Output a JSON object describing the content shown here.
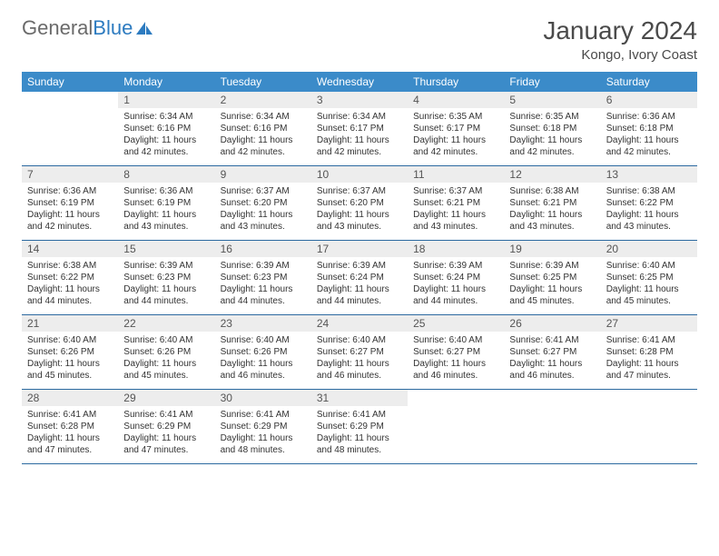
{
  "brand": {
    "part1": "General",
    "part2": "Blue",
    "logo_color": "#2d7bc0"
  },
  "title": "January 2024",
  "location": "Kongo, Ivory Coast",
  "colors": {
    "header_bg": "#3b8bc9",
    "header_text": "#ffffff",
    "daynum_bg": "#ededed",
    "rule": "#2c6aa0",
    "text": "#333333"
  },
  "fonts": {
    "title_size": 28,
    "location_size": 15,
    "dow_size": 12,
    "body_size": 10
  },
  "dow": [
    "Sunday",
    "Monday",
    "Tuesday",
    "Wednesday",
    "Thursday",
    "Friday",
    "Saturday"
  ],
  "weeks": [
    [
      null,
      {
        "n": "1",
        "sr": "6:34 AM",
        "ss": "6:16 PM",
        "dl": "11 hours and 42 minutes."
      },
      {
        "n": "2",
        "sr": "6:34 AM",
        "ss": "6:16 PM",
        "dl": "11 hours and 42 minutes."
      },
      {
        "n": "3",
        "sr": "6:34 AM",
        "ss": "6:17 PM",
        "dl": "11 hours and 42 minutes."
      },
      {
        "n": "4",
        "sr": "6:35 AM",
        "ss": "6:17 PM",
        "dl": "11 hours and 42 minutes."
      },
      {
        "n": "5",
        "sr": "6:35 AM",
        "ss": "6:18 PM",
        "dl": "11 hours and 42 minutes."
      },
      {
        "n": "6",
        "sr": "6:36 AM",
        "ss": "6:18 PM",
        "dl": "11 hours and 42 minutes."
      }
    ],
    [
      {
        "n": "7",
        "sr": "6:36 AM",
        "ss": "6:19 PM",
        "dl": "11 hours and 42 minutes."
      },
      {
        "n": "8",
        "sr": "6:36 AM",
        "ss": "6:19 PM",
        "dl": "11 hours and 43 minutes."
      },
      {
        "n": "9",
        "sr": "6:37 AM",
        "ss": "6:20 PM",
        "dl": "11 hours and 43 minutes."
      },
      {
        "n": "10",
        "sr": "6:37 AM",
        "ss": "6:20 PM",
        "dl": "11 hours and 43 minutes."
      },
      {
        "n": "11",
        "sr": "6:37 AM",
        "ss": "6:21 PM",
        "dl": "11 hours and 43 minutes."
      },
      {
        "n": "12",
        "sr": "6:38 AM",
        "ss": "6:21 PM",
        "dl": "11 hours and 43 minutes."
      },
      {
        "n": "13",
        "sr": "6:38 AM",
        "ss": "6:22 PM",
        "dl": "11 hours and 43 minutes."
      }
    ],
    [
      {
        "n": "14",
        "sr": "6:38 AM",
        "ss": "6:22 PM",
        "dl": "11 hours and 44 minutes."
      },
      {
        "n": "15",
        "sr": "6:39 AM",
        "ss": "6:23 PM",
        "dl": "11 hours and 44 minutes."
      },
      {
        "n": "16",
        "sr": "6:39 AM",
        "ss": "6:23 PM",
        "dl": "11 hours and 44 minutes."
      },
      {
        "n": "17",
        "sr": "6:39 AM",
        "ss": "6:24 PM",
        "dl": "11 hours and 44 minutes."
      },
      {
        "n": "18",
        "sr": "6:39 AM",
        "ss": "6:24 PM",
        "dl": "11 hours and 44 minutes."
      },
      {
        "n": "19",
        "sr": "6:39 AM",
        "ss": "6:25 PM",
        "dl": "11 hours and 45 minutes."
      },
      {
        "n": "20",
        "sr": "6:40 AM",
        "ss": "6:25 PM",
        "dl": "11 hours and 45 minutes."
      }
    ],
    [
      {
        "n": "21",
        "sr": "6:40 AM",
        "ss": "6:26 PM",
        "dl": "11 hours and 45 minutes."
      },
      {
        "n": "22",
        "sr": "6:40 AM",
        "ss": "6:26 PM",
        "dl": "11 hours and 45 minutes."
      },
      {
        "n": "23",
        "sr": "6:40 AM",
        "ss": "6:26 PM",
        "dl": "11 hours and 46 minutes."
      },
      {
        "n": "24",
        "sr": "6:40 AM",
        "ss": "6:27 PM",
        "dl": "11 hours and 46 minutes."
      },
      {
        "n": "25",
        "sr": "6:40 AM",
        "ss": "6:27 PM",
        "dl": "11 hours and 46 minutes."
      },
      {
        "n": "26",
        "sr": "6:41 AM",
        "ss": "6:27 PM",
        "dl": "11 hours and 46 minutes."
      },
      {
        "n": "27",
        "sr": "6:41 AM",
        "ss": "6:28 PM",
        "dl": "11 hours and 47 minutes."
      }
    ],
    [
      {
        "n": "28",
        "sr": "6:41 AM",
        "ss": "6:28 PM",
        "dl": "11 hours and 47 minutes."
      },
      {
        "n": "29",
        "sr": "6:41 AM",
        "ss": "6:29 PM",
        "dl": "11 hours and 47 minutes."
      },
      {
        "n": "30",
        "sr": "6:41 AM",
        "ss": "6:29 PM",
        "dl": "11 hours and 48 minutes."
      },
      {
        "n": "31",
        "sr": "6:41 AM",
        "ss": "6:29 PM",
        "dl": "11 hours and 48 minutes."
      },
      null,
      null,
      null
    ]
  ],
  "labels": {
    "sunrise": "Sunrise:",
    "sunset": "Sunset:",
    "daylight": "Daylight:"
  }
}
